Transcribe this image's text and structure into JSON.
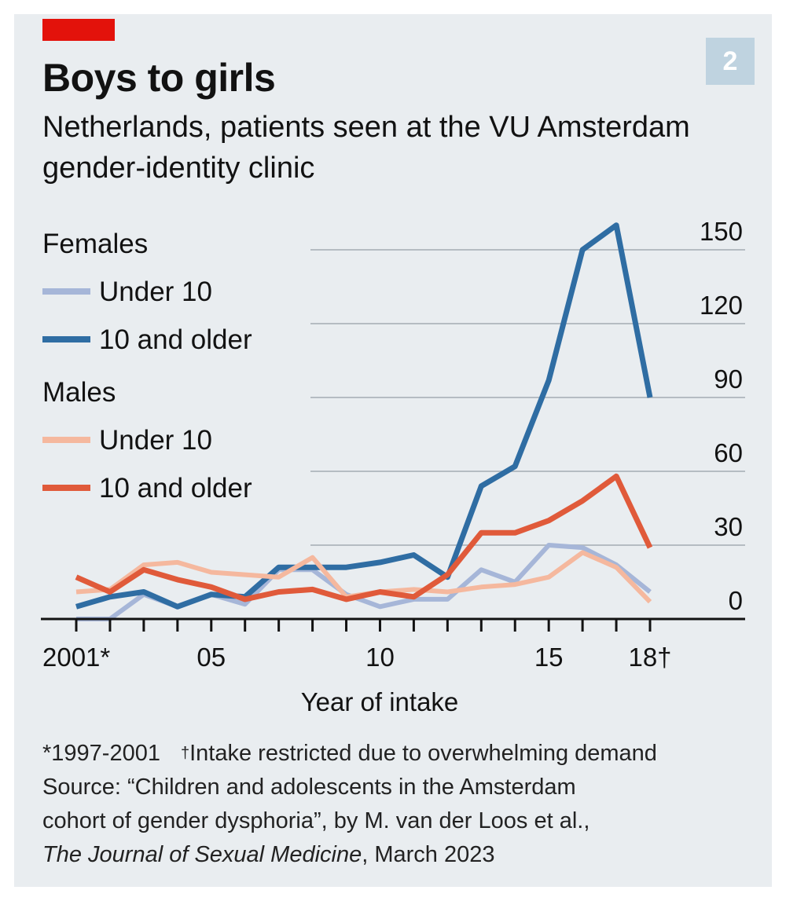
{
  "header": {
    "badge": "2",
    "title": "Boys to girls",
    "subtitle": "Netherlands, patients seen at the VU Amsterdam gender-identity clinic"
  },
  "colors": {
    "panel": "#e9edf0",
    "red_tag": "#e3120b",
    "female_under10": "#a6b6d8",
    "female_10older": "#2f6da3",
    "male_under10": "#f5b89e",
    "male_10older": "#e05a3a",
    "grid": "#b5bcc2",
    "axis": "#121212"
  },
  "chart_data": {
    "type": "line",
    "xlabel": "Year of intake",
    "ylabel": "",
    "x": [
      2001,
      2002,
      2003,
      2004,
      2005,
      2006,
      2007,
      2008,
      2009,
      2010,
      2011,
      2012,
      2013,
      2014,
      2015,
      2016,
      2017,
      2018
    ],
    "x_ticks": [
      {
        "value": 2001,
        "label": "2001*"
      },
      {
        "value": 2005,
        "label": "05"
      },
      {
        "value": 2010,
        "label": "10"
      },
      {
        "value": 2015,
        "label": "15"
      },
      {
        "value": 2018,
        "label": "18†"
      }
    ],
    "ylim": [
      0,
      150
    ],
    "y_ticks": [
      0,
      30,
      60,
      90,
      120,
      150
    ],
    "legend": {
      "groups": [
        {
          "title": "Females",
          "entries": [
            {
              "label": "Under 10",
              "series": 0
            },
            {
              "label": "10 and older",
              "series": 1
            }
          ]
        },
        {
          "title": "Males",
          "entries": [
            {
              "label": "Under 10",
              "series": 2
            },
            {
              "label": "10 and older",
              "series": 3
            }
          ]
        }
      ]
    },
    "series": [
      {
        "name": "Females Under 10",
        "color_key": "female_under10",
        "values": [
          0,
          0,
          10,
          5,
          10,
          6,
          20,
          20,
          10,
          5,
          8,
          8,
          20,
          15,
          30,
          29,
          22,
          11
        ]
      },
      {
        "name": "Females 10 and older",
        "color_key": "female_10older",
        "values": [
          5,
          9,
          11,
          5,
          10,
          9,
          21,
          21,
          21,
          23,
          26,
          17,
          54,
          62,
          97,
          150,
          160,
          90
        ]
      },
      {
        "name": "Males Under 10",
        "color_key": "male_under10",
        "values": [
          11,
          12,
          22,
          23,
          19,
          18,
          17,
          25,
          9,
          11,
          12,
          11,
          13,
          14,
          17,
          27,
          21,
          7
        ]
      },
      {
        "name": "Males 10 and older",
        "color_key": "male_10older",
        "values": [
          17,
          11,
          20,
          16,
          13,
          8,
          11,
          12,
          8,
          11,
          9,
          18,
          35,
          35,
          40,
          48,
          58,
          29
        ]
      }
    ]
  },
  "footnotes": {
    "star_note": "*1997-2001",
    "dagger_mark": "†",
    "dagger_note": "Intake restricted due to overwhelming demand",
    "source_line1": "Source: “Children and adolescents in the Amsterdam",
    "source_line2": "cohort of gender dysphoria”, by M. van der Loos et al.,",
    "journal": "The Journal of Sexual Medicine",
    "date": ", March 2023"
  }
}
